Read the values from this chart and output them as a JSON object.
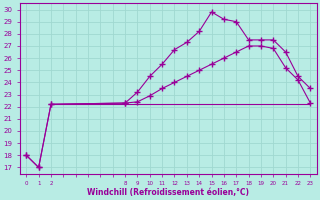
{
  "xlabel": "Windchill (Refroidissement éolien,°C)",
  "bg_color": "#b8ece4",
  "grid_color": "#a0d8d0",
  "line_color": "#990099",
  "xlim": [
    -0.5,
    23.5
  ],
  "ylim": [
    16.5,
    30.5
  ],
  "yticks": [
    17,
    18,
    19,
    20,
    21,
    22,
    23,
    24,
    25,
    26,
    27,
    28,
    29,
    30
  ],
  "x_ticks_show": [
    0,
    1,
    2,
    8,
    9,
    10,
    11,
    12,
    13,
    14,
    15,
    16,
    17,
    18,
    19,
    20,
    21,
    22,
    23
  ],
  "line1_x": [
    0,
    1,
    2,
    8,
    9,
    10,
    11,
    12,
    13,
    14,
    15,
    16,
    17,
    18,
    19,
    20,
    21,
    22,
    23
  ],
  "line1_y": [
    18.0,
    17.0,
    22.2,
    22.3,
    23.2,
    24.5,
    25.5,
    26.7,
    27.3,
    28.2,
    29.8,
    29.2,
    29.0,
    27.5,
    27.5,
    27.5,
    26.5,
    24.5,
    23.5
  ],
  "line2_x": [
    0,
    1,
    2,
    8,
    9,
    10,
    11,
    12,
    13,
    14,
    15,
    16,
    17,
    18,
    19,
    20,
    21,
    22,
    23
  ],
  "line2_y": [
    18.0,
    17.0,
    22.2,
    22.3,
    22.4,
    22.9,
    23.5,
    24.0,
    24.5,
    25.0,
    25.5,
    26.0,
    26.5,
    27.0,
    27.0,
    26.8,
    25.2,
    24.2,
    22.3
  ],
  "line3_x": [
    2,
    9,
    10,
    11,
    12,
    13,
    14,
    15,
    16,
    17,
    18,
    19,
    20,
    21,
    22,
    23
  ],
  "line3_y": [
    22.2,
    22.2,
    22.2,
    22.2,
    22.2,
    22.2,
    22.2,
    22.2,
    22.2,
    22.2,
    22.2,
    22.2,
    22.2,
    22.2,
    22.2,
    22.2
  ]
}
